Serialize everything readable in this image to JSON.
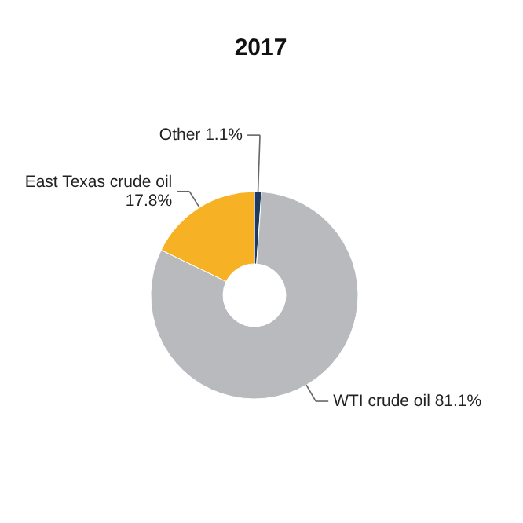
{
  "chart_data": {
    "type": "donut",
    "title": "2017",
    "categories": [
      "Other",
      "WTI crude oil",
      "East Texas crude oil"
    ],
    "values": [
      1.1,
      81.1,
      17.8
    ],
    "value_labels": [
      "1.1%",
      "81.1%",
      "17.8%"
    ],
    "colors": [
      "#1f3a5f",
      "#b9babd",
      "#f7b124"
    ]
  }
}
